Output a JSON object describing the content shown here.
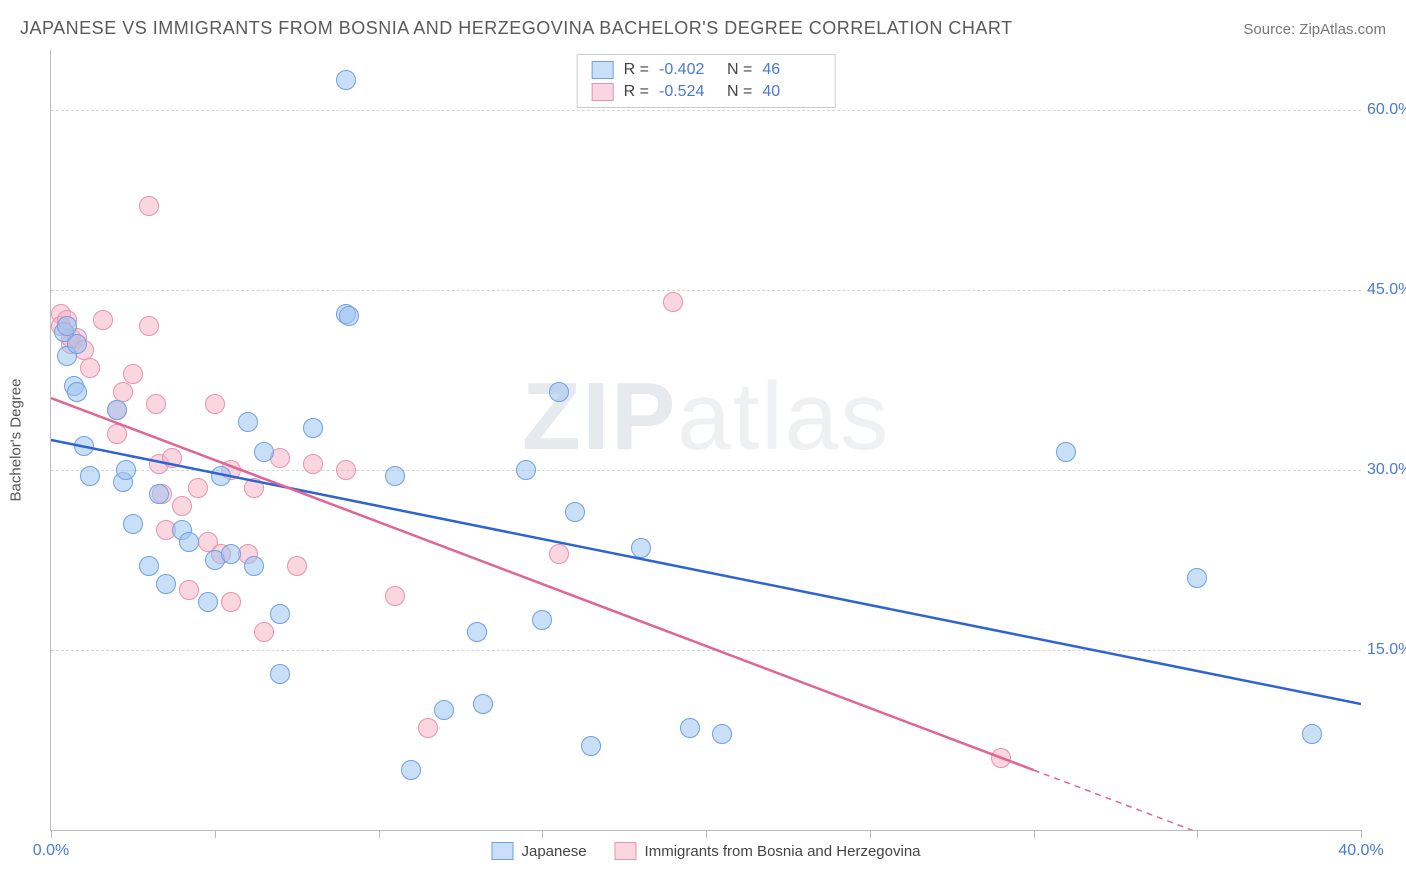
{
  "header": {
    "title": "JAPANESE VS IMMIGRANTS FROM BOSNIA AND HERZEGOVINA BACHELOR'S DEGREE CORRELATION CHART",
    "source_prefix": "Source: ",
    "source_link": "ZipAtlas.com"
  },
  "watermark": {
    "bold": "ZIP",
    "rest": "atlas"
  },
  "chart": {
    "type": "scatter",
    "xlim": [
      0,
      40
    ],
    "ylim": [
      0,
      65
    ],
    "xticks": [
      0,
      5,
      10,
      15,
      20,
      25,
      30,
      35,
      40
    ],
    "xtick_labels": {
      "0": "0.0%",
      "40": "40.0%"
    },
    "yticks": [
      15,
      30,
      45,
      60
    ],
    "ytick_labels": {
      "15": "15.0%",
      "30": "30.0%",
      "45": "45.0%",
      "60": "60.0%"
    },
    "ylabel": "Bachelor's Degree",
    "background_color": "#ffffff",
    "grid_color": "#d5d5d5",
    "marker_radius": 9,
    "series": {
      "japanese": {
        "label": "Japanese",
        "fill": "rgba(156,194,240,0.55)",
        "stroke": "#6fa1e0",
        "trend_color": "#2f64d0",
        "trend_width": 2.5,
        "R": "-0.402",
        "N": "46",
        "trend": {
          "x1": 0,
          "y1": 32.5,
          "x2": 40,
          "y2": 10.5
        },
        "points": [
          [
            0.4,
            41.5
          ],
          [
            0.5,
            42.0
          ],
          [
            0.5,
            39.5
          ],
          [
            0.7,
            37.0
          ],
          [
            0.8,
            40.5
          ],
          [
            0.8,
            36.5
          ],
          [
            1.0,
            32.0
          ],
          [
            1.2,
            29.5
          ],
          [
            2.0,
            35.0
          ],
          [
            2.2,
            29.0
          ],
          [
            2.3,
            30.0
          ],
          [
            2.5,
            25.5
          ],
          [
            3.0,
            22.0
          ],
          [
            3.3,
            28.0
          ],
          [
            3.5,
            20.5
          ],
          [
            4.0,
            25.0
          ],
          [
            4.2,
            24.0
          ],
          [
            4.8,
            19.0
          ],
          [
            5.0,
            22.5
          ],
          [
            5.2,
            29.5
          ],
          [
            5.5,
            23.0
          ],
          [
            6.0,
            34.0
          ],
          [
            6.2,
            22.0
          ],
          [
            6.5,
            31.5
          ],
          [
            7.0,
            13.0
          ],
          [
            7.0,
            18.0
          ],
          [
            8.0,
            33.5
          ],
          [
            9.0,
            43.0
          ],
          [
            9.0,
            62.5
          ],
          [
            9.1,
            42.8
          ],
          [
            10.5,
            29.5
          ],
          [
            11.0,
            5.0
          ],
          [
            12.0,
            10.0
          ],
          [
            13.0,
            16.5
          ],
          [
            13.2,
            10.5
          ],
          [
            14.5,
            30.0
          ],
          [
            15.0,
            17.5
          ],
          [
            15.5,
            36.5
          ],
          [
            16.0,
            26.5
          ],
          [
            16.5,
            7.0
          ],
          [
            18.0,
            23.5
          ],
          [
            19.5,
            8.5
          ],
          [
            20.5,
            8.0
          ],
          [
            31.0,
            31.5
          ],
          [
            35.0,
            21.0
          ],
          [
            38.5,
            8.0
          ]
        ]
      },
      "bosnia": {
        "label": "Immigrants from Bosnia and Herzegovina",
        "fill": "rgba(245,180,200,0.55)",
        "stroke": "#e693ad",
        "trend_color": "#e06596",
        "trend_width": 2.5,
        "R": "-0.524",
        "N": "40",
        "trend_solid": {
          "x1": 0,
          "y1": 36.0,
          "x2": 30,
          "y2": 5.0
        },
        "trend_dash": {
          "x1": 30,
          "y1": 5.0,
          "x2": 38.5,
          "y2": -3.8
        },
        "points": [
          [
            0.3,
            43.0
          ],
          [
            0.3,
            42.0
          ],
          [
            0.5,
            42.5
          ],
          [
            0.6,
            40.5
          ],
          [
            0.6,
            41.0
          ],
          [
            0.8,
            41.0
          ],
          [
            1.0,
            40.0
          ],
          [
            1.2,
            38.5
          ],
          [
            1.6,
            42.5
          ],
          [
            2.0,
            35.0
          ],
          [
            2.0,
            33.0
          ],
          [
            2.2,
            36.5
          ],
          [
            2.5,
            38.0
          ],
          [
            3.0,
            52.0
          ],
          [
            3.0,
            42.0
          ],
          [
            3.2,
            35.5
          ],
          [
            3.3,
            30.5
          ],
          [
            3.4,
            28.0
          ],
          [
            3.5,
            25.0
          ],
          [
            3.7,
            31.0
          ],
          [
            4.0,
            27.0
          ],
          [
            4.2,
            20.0
          ],
          [
            4.5,
            28.5
          ],
          [
            4.8,
            24.0
          ],
          [
            5.0,
            35.5
          ],
          [
            5.2,
            23.0
          ],
          [
            5.5,
            19.0
          ],
          [
            5.5,
            30.0
          ],
          [
            6.0,
            23.0
          ],
          [
            6.2,
            28.5
          ],
          [
            6.5,
            16.5
          ],
          [
            7.0,
            31.0
          ],
          [
            7.5,
            22.0
          ],
          [
            8.0,
            30.5
          ],
          [
            9.0,
            30.0
          ],
          [
            10.5,
            19.5
          ],
          [
            11.5,
            8.5
          ],
          [
            15.5,
            23.0
          ],
          [
            19.0,
            44.0
          ],
          [
            29.0,
            6.0
          ]
        ]
      }
    },
    "legend_top": {
      "rows": [
        {
          "series": "japanese"
        },
        {
          "series": "bosnia"
        }
      ],
      "R_label": "R = ",
      "N_label": "N = "
    },
    "legend_bottom": [
      {
        "series": "japanese"
      },
      {
        "series": "bosnia"
      }
    ]
  }
}
